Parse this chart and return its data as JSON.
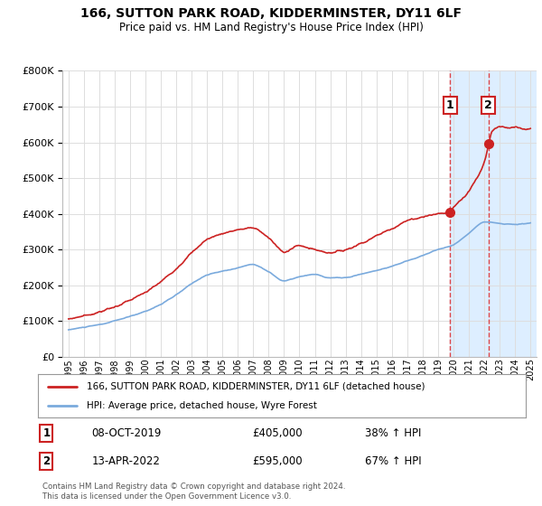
{
  "title": "166, SUTTON PARK ROAD, KIDDERMINSTER, DY11 6LF",
  "subtitle": "Price paid vs. HM Land Registry's House Price Index (HPI)",
  "legend_line1": "166, SUTTON PARK ROAD, KIDDERMINSTER, DY11 6LF (detached house)",
  "legend_line2": "HPI: Average price, detached house, Wyre Forest",
  "marker1_date": "08-OCT-2019",
  "marker1_price": "£405,000",
  "marker1_hpi": "38% ↑ HPI",
  "marker2_date": "13-APR-2022",
  "marker2_price": "£595,000",
  "marker2_hpi": "67% ↑ HPI",
  "footnote": "Contains HM Land Registry data © Crown copyright and database right 2024.\nThis data is licensed under the Open Government Licence v3.0.",
  "ylim": [
    0,
    800000
  ],
  "yticks": [
    0,
    100000,
    200000,
    300000,
    400000,
    500000,
    600000,
    700000,
    800000
  ],
  "xlabel_years": [
    1995,
    1996,
    1997,
    1998,
    1999,
    2000,
    2001,
    2002,
    2003,
    2004,
    2005,
    2006,
    2007,
    2008,
    2009,
    2010,
    2011,
    2012,
    2013,
    2014,
    2015,
    2016,
    2017,
    2018,
    2019,
    2020,
    2021,
    2022,
    2023,
    2024,
    2025
  ],
  "red_line_color": "#cc2222",
  "blue_line_color": "#7aaadd",
  "highlight_color": "#ddeeff",
  "marker1_x": 2019.77,
  "marker2_x": 2022.28,
  "marker1_y": 405000,
  "marker2_y": 595000,
  "xmin": 1994.6,
  "xmax": 2025.4,
  "background_color": "#ffffff",
  "grid_color": "#dddddd"
}
